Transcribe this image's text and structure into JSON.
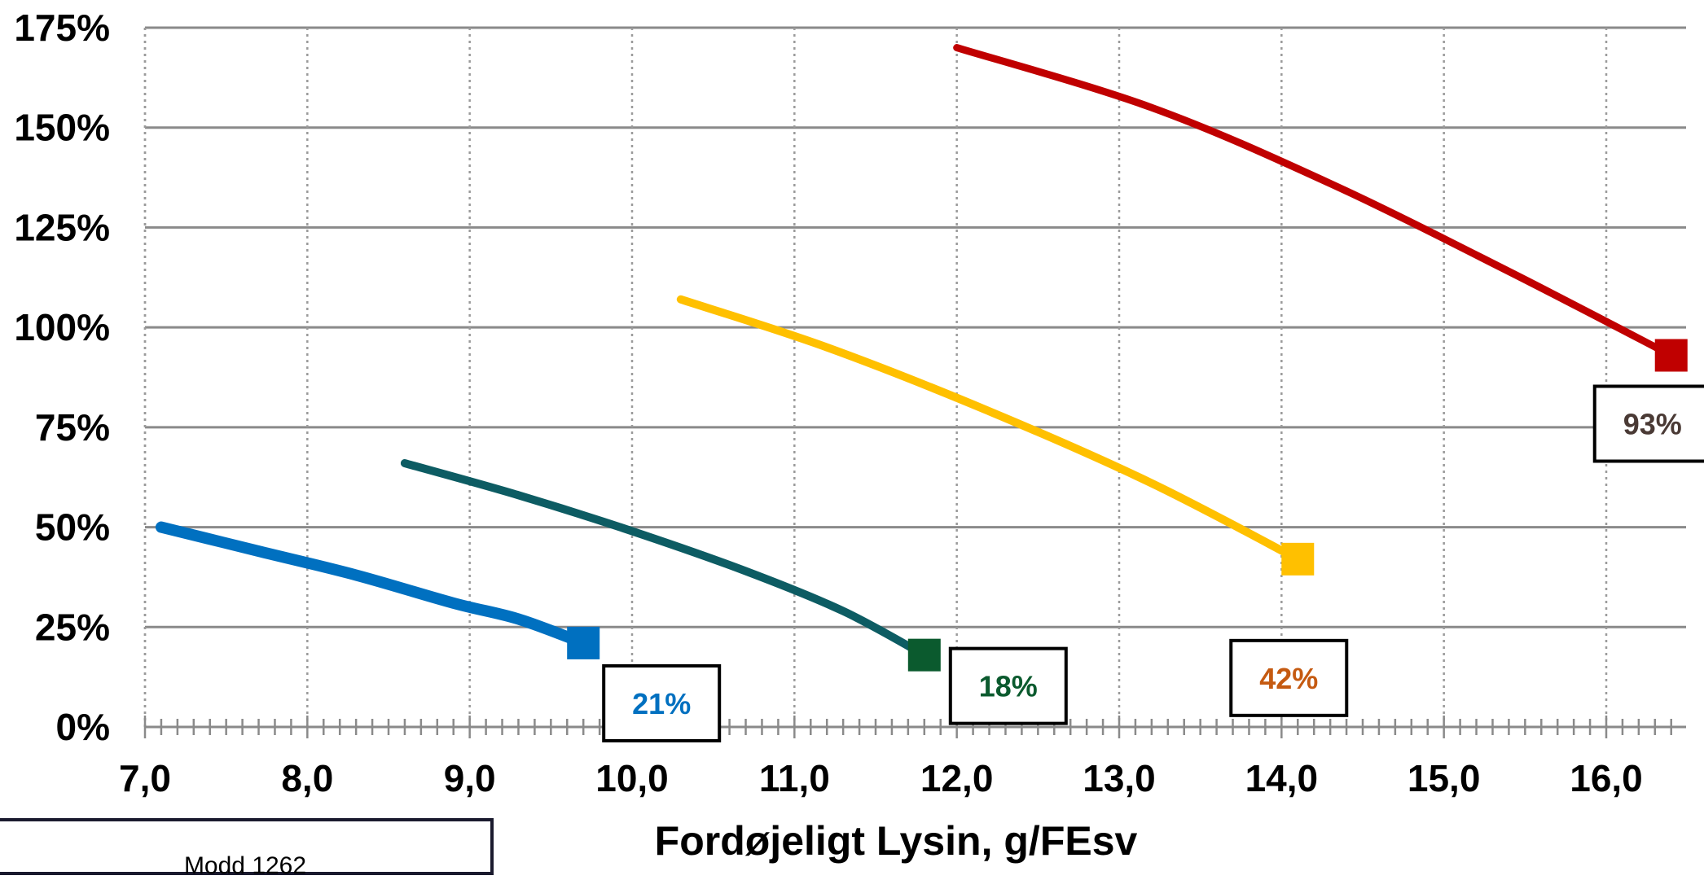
{
  "chart_data": {
    "type": "line",
    "xlabel": "Fordøjeligt Lysin, g/FEsv",
    "ylabel": "",
    "xlim": [
      7.0,
      16.5
    ],
    "ylim": [
      0,
      175
    ],
    "x_ticks": [
      7,
      8,
      9,
      10,
      11,
      12,
      13,
      14,
      15,
      16
    ],
    "x_tick_labels": [
      "7,0",
      "8,0",
      "9,0",
      "10,0",
      "11,0",
      "12,0",
      "13,0",
      "14,0",
      "15,0",
      "16,0"
    ],
    "y_ticks": [
      0,
      25,
      50,
      75,
      100,
      125,
      150,
      175
    ],
    "y_tick_labels": [
      "0%",
      "25%",
      "50%",
      "75%",
      "100%",
      "125%",
      "150%",
      "175%"
    ],
    "grid": {
      "horizontal": "solid",
      "vertical": "dotted"
    },
    "series": [
      {
        "color": "#0070C0",
        "points": [
          [
            7.1,
            50
          ],
          [
            7.7,
            44
          ],
          [
            8.3,
            38
          ],
          [
            8.9,
            31
          ],
          [
            9.3,
            27
          ],
          [
            9.7,
            21
          ]
        ],
        "end_value": 21,
        "end_label": "21%",
        "label_color": "#0070C0"
      },
      {
        "color": "#0D5C63",
        "points": [
          [
            8.6,
            66
          ],
          [
            9.3,
            58
          ],
          [
            10.0,
            49
          ],
          [
            10.7,
            39
          ],
          [
            11.3,
            29
          ],
          [
            11.8,
            18
          ]
        ],
        "end_value": 18,
        "end_label": "18%",
        "label_color": "#0B5A2E",
        "marker_color": "#0B5A2E"
      },
      {
        "color": "#FFC000",
        "points": [
          [
            10.3,
            107
          ],
          [
            11.2,
            95
          ],
          [
            12.2,
            79
          ],
          [
            13.2,
            61
          ],
          [
            14.1,
            42
          ]
        ],
        "end_value": 42,
        "end_label": "42%",
        "label_color": "#C55A11"
      },
      {
        "color": "#C00000",
        "points": [
          [
            12.0,
            170
          ],
          [
            13.2,
            155
          ],
          [
            14.3,
            136
          ],
          [
            15.4,
            114
          ],
          [
            16.4,
            93
          ]
        ],
        "end_value": 93,
        "end_label": "93%",
        "label_color": "#4A3A35"
      }
    ]
  },
  "footnote_box": {
    "text": "Modd 1262"
  }
}
